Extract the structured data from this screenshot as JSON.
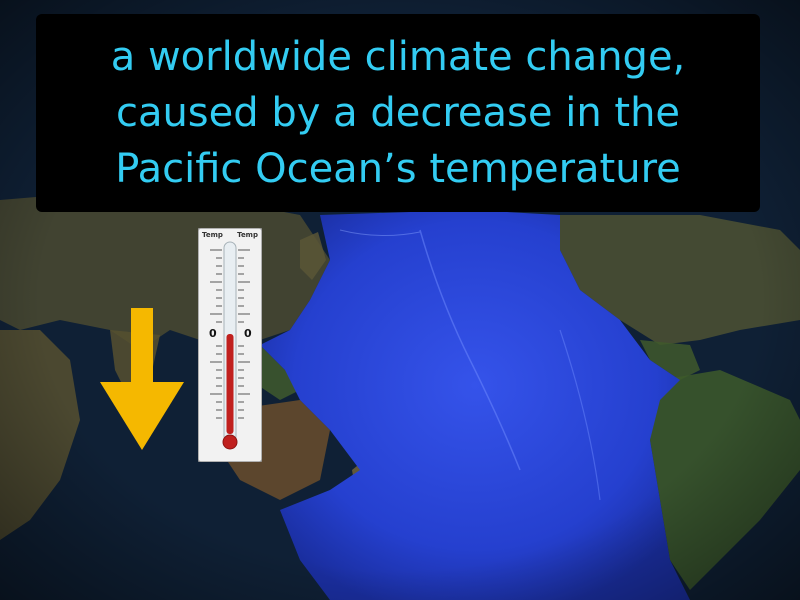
{
  "caption": {
    "lines": [
      "a worldwide climate change,",
      "caused by a decrease in the",
      "Pacific Ocean’s temperature"
    ]
  },
  "thermometer": {
    "left_label": "Temp",
    "right_label": "Temp",
    "left_zero": "0",
    "right_zero": "0"
  },
  "icons": {
    "arrow": "down-arrow-icon",
    "thermometer": "thermometer-icon"
  },
  "colors": {
    "caption_text": "#33ccf2",
    "caption_background": "#000000",
    "arrow": "#f5b800",
    "mercury": "#c0201e",
    "ocean_highlight": "#2f4fe0"
  }
}
